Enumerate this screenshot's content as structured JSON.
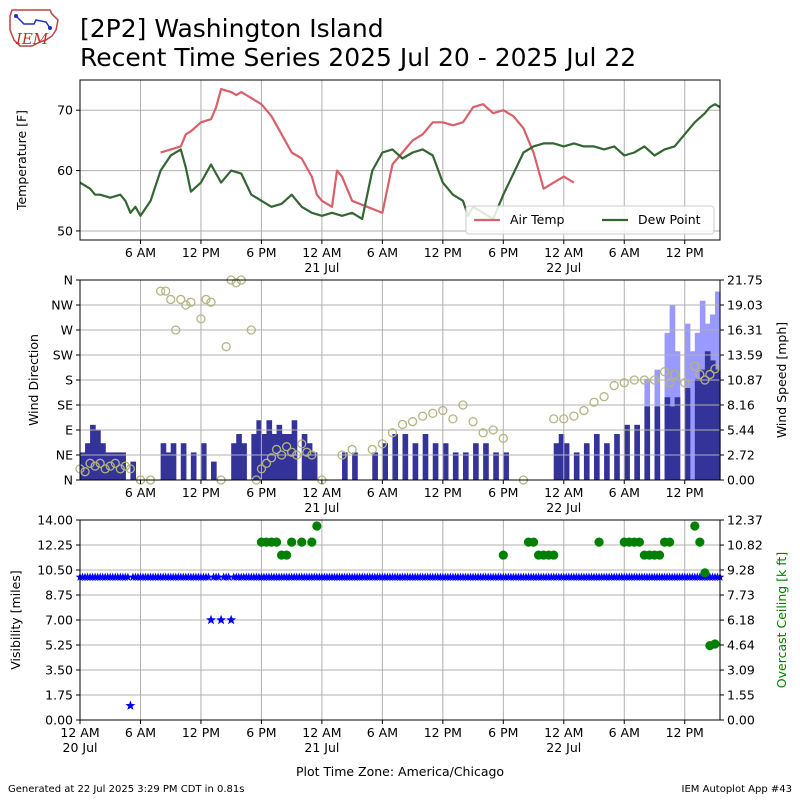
{
  "title_line1": "[2P2] Washington Island",
  "title_line2": "Recent Time Series 2025 Jul 20 - 2025 Jul 22",
  "footer_left": "Generated at 22 Jul 2025 3:29 PM CDT in 0.81s",
  "footer_right": "IEM Autoplot App #43",
  "logo_text": "IEM",
  "x_axis_title": "Plot Time Zone: America/Chicago",
  "colors": {
    "air_temp": "#d9606a",
    "dew_point": "#336633",
    "wind_speed": "#333399",
    "wind_gust": "#9999ff",
    "wind_dir": "#b5b57f",
    "visibility": "#0000ff",
    "ceiling": "#008000",
    "grid": "#b0b0b0"
  },
  "chart_data": [
    {
      "type": "line",
      "name": "temperature",
      "ylabel": "Temperature [F]",
      "ylim": [
        48.5,
        75
      ],
      "yticks": [
        50,
        60,
        70
      ],
      "xlim": [
        0,
        63.5
      ],
      "xticks": [
        6,
        12,
        18,
        24,
        30,
        36,
        42,
        48,
        54,
        60
      ],
      "xtick_labels": [
        "6 AM",
        "12 PM",
        "6 PM",
        "12 AM",
        "6 AM",
        "12 PM",
        "6 PM",
        "12 AM",
        "6 AM",
        "12 PM"
      ],
      "xtick_sublabels": {
        "24": "21 Jul",
        "48": "22 Jul"
      },
      "grid": true,
      "legend_position": "lower-right",
      "series": [
        {
          "name": "Air Temp",
          "x": [
            8,
            9,
            10,
            10.5,
            11,
            12,
            13,
            13.5,
            14,
            15,
            15.5,
            16,
            17,
            18,
            19,
            20,
            21,
            22,
            23,
            23.5,
            24,
            25,
            25.5,
            26,
            27,
            30,
            31,
            32,
            33,
            34,
            35,
            36,
            37,
            38,
            39,
            40,
            41,
            42,
            43,
            44,
            44.5,
            45,
            45.5,
            46,
            47,
            48,
            49
          ],
          "y": [
            63,
            63.5,
            64,
            66,
            66.5,
            68,
            68.5,
            70.5,
            73.5,
            73,
            72.5,
            73,
            72,
            71,
            69,
            66,
            63,
            62,
            59,
            56,
            55,
            54,
            60,
            59,
            55,
            53,
            61,
            63,
            65,
            66,
            68,
            68,
            67.5,
            68,
            70.5,
            71,
            69.5,
            70,
            69,
            67,
            65,
            63,
            60,
            57,
            58,
            59,
            58
          ]
        },
        {
          "name": "Dew Point",
          "x": [
            0,
            1,
            1.5,
            2,
            3,
            4,
            4.5,
            5,
            5.5,
            6,
            7,
            8,
            9,
            10,
            10.5,
            11,
            12,
            13,
            14,
            15,
            16,
            17,
            17.5,
            18,
            19,
            20,
            21,
            22,
            23,
            24,
            25,
            26,
            27,
            28,
            29,
            30,
            31,
            32,
            33,
            34,
            35,
            36,
            37,
            38,
            38.5,
            39,
            40,
            41,
            42,
            43,
            44,
            45,
            46,
            47,
            48,
            49,
            50,
            51,
            52,
            53,
            54,
            55,
            56,
            57,
            58,
            59,
            60,
            61,
            62,
            62.5,
            63,
            63.5
          ],
          "y": [
            58,
            57,
            56,
            56,
            55.5,
            56,
            55,
            53,
            54,
            52.5,
            55,
            60,
            62.5,
            63.5,
            60.5,
            56.5,
            58,
            61,
            58,
            60,
            59.5,
            56,
            55.5,
            55,
            54,
            54.5,
            56,
            54,
            53,
            52.5,
            53,
            52.5,
            53,
            52,
            60,
            63,
            63.5,
            62,
            63,
            63.5,
            62.5,
            58,
            56,
            55,
            52.5,
            54,
            53,
            52,
            56,
            59.5,
            63,
            64,
            64.5,
            64.5,
            64,
            64.5,
            64,
            64,
            63.5,
            64,
            62.5,
            63,
            64,
            62.5,
            63.5,
            64,
            66,
            68,
            69.5,
            70.5,
            71,
            70.5
          ]
        }
      ]
    },
    {
      "type": "bar",
      "name": "wind",
      "ylabel": "Wind Direction",
      "ylabel_right": "Wind Speed [mph]",
      "ylim": [
        0,
        360
      ],
      "yticks": [
        0,
        45,
        90,
        135,
        180,
        225,
        270,
        315,
        360
      ],
      "ytick_labels": [
        "N",
        "NE",
        "E",
        "SE",
        "S",
        "SW",
        "W",
        "NW",
        "N"
      ],
      "ylim_right": [
        0,
        21.75
      ],
      "yticks_right": [
        0.0,
        2.72,
        5.44,
        8.16,
        10.87,
        13.59,
        16.31,
        19.03,
        21.75
      ],
      "xlim": [
        0,
        63.5
      ],
      "grid": true,
      "wind_speed": {
        "name": "Wind Speed",
        "values": [
          [
            0,
            3
          ],
          [
            0.5,
            4
          ],
          [
            1,
            6
          ],
          [
            1.5,
            5.5
          ],
          [
            2,
            4
          ],
          [
            2.5,
            3
          ],
          [
            3,
            3
          ],
          [
            3.5,
            3
          ],
          [
            4,
            3
          ],
          [
            5,
            2
          ],
          [
            6,
            0
          ],
          [
            8,
            4
          ],
          [
            8.5,
            3
          ],
          [
            9,
            4
          ],
          [
            10,
            4
          ],
          [
            11,
            3
          ],
          [
            12,
            4
          ],
          [
            13,
            2
          ],
          [
            14,
            0
          ],
          [
            15,
            4
          ],
          [
            15.5,
            5
          ],
          [
            16,
            4
          ],
          [
            17,
            5
          ],
          [
            17.5,
            6.5
          ],
          [
            18,
            5
          ],
          [
            18.5,
            6.5
          ],
          [
            19,
            5
          ],
          [
            19.5,
            6
          ],
          [
            20,
            5
          ],
          [
            20.5,
            5
          ],
          [
            21,
            6.5
          ],
          [
            22,
            5
          ],
          [
            22.5,
            4
          ],
          [
            23,
            3
          ],
          [
            24,
            0
          ],
          [
            26,
            3
          ],
          [
            26.5,
            0
          ],
          [
            27,
            3
          ],
          [
            29,
            3
          ],
          [
            30,
            4
          ],
          [
            31,
            5
          ],
          [
            32,
            5
          ],
          [
            33,
            4
          ],
          [
            34,
            5
          ],
          [
            35,
            4
          ],
          [
            36,
            4
          ],
          [
            37,
            3
          ],
          [
            38,
            3
          ],
          [
            39,
            4
          ],
          [
            40,
            4
          ],
          [
            41,
            3
          ],
          [
            42,
            3
          ],
          [
            44,
            0
          ],
          [
            47,
            4
          ],
          [
            47.5,
            5
          ],
          [
            48,
            4
          ],
          [
            49,
            3
          ],
          [
            50,
            4
          ],
          [
            51,
            5
          ],
          [
            52,
            4
          ],
          [
            53,
            5
          ],
          [
            54,
            6
          ],
          [
            55,
            6
          ],
          [
            56,
            8
          ],
          [
            57,
            8
          ],
          [
            58,
            9
          ],
          [
            58.5,
            8
          ],
          [
            59,
            9
          ],
          [
            60,
            10
          ],
          [
            61,
            11
          ],
          [
            61.5,
            12
          ],
          [
            62,
            14
          ],
          [
            62.5,
            13
          ],
          [
            63,
            12
          ]
        ]
      },
      "wind_gust": {
        "name": "Wind Gust",
        "values": [
          [
            56,
            11
          ],
          [
            57,
            12
          ],
          [
            58,
            16
          ],
          [
            58.5,
            19
          ],
          [
            59,
            14
          ],
          [
            60,
            17
          ],
          [
            60.5,
            14
          ],
          [
            61,
            16
          ],
          [
            61.5,
            19.5
          ],
          [
            62,
            17
          ],
          [
            62.5,
            18
          ],
          [
            63,
            20.5
          ]
        ]
      },
      "wind_direction": {
        "name": "Wind Direction",
        "x": [
          0,
          0.5,
          1,
          1.5,
          2,
          2.5,
          3,
          3.5,
          4,
          4.5,
          5,
          6,
          7,
          8,
          8.5,
          9,
          9.5,
          10,
          10.5,
          11,
          12,
          12.5,
          13,
          14,
          14.5,
          15,
          15.5,
          16,
          17,
          17.5,
          18,
          18.5,
          19,
          19.5,
          20,
          20.5,
          21,
          21.5,
          22,
          22.5,
          23,
          24,
          26,
          27,
          29,
          30,
          31,
          32,
          33,
          34,
          35,
          36,
          37,
          38,
          39,
          40,
          41,
          42,
          44,
          47,
          48,
          49,
          50,
          51,
          52,
          53,
          54,
          55,
          56,
          57,
          58,
          58.5,
          59,
          60,
          61,
          61.5,
          62,
          62.5,
          63
        ],
        "y": [
          20,
          15,
          30,
          25,
          30,
          20,
          25,
          30,
          20,
          25,
          20,
          0,
          0,
          340,
          340,
          325,
          270,
          325,
          315,
          320,
          290,
          325,
          320,
          0,
          240,
          360,
          355,
          360,
          270,
          0,
          20,
          30,
          40,
          55,
          45,
          60,
          50,
          45,
          65,
          50,
          45,
          0,
          45,
          55,
          55,
          65,
          85,
          100,
          105,
          115,
          120,
          125,
          110,
          135,
          105,
          85,
          90,
          75,
          0,
          110,
          110,
          115,
          125,
          140,
          150,
          170,
          175,
          180,
          180,
          180,
          195,
          175,
          190,
          175,
          205,
          190,
          180,
          190,
          200
        ]
      }
    },
    {
      "type": "scatter",
      "name": "visibility_ceiling",
      "ylabel": "Visibility [miles]",
      "ylabel_right": "Overcast Ceiling [k ft]",
      "ylim": [
        0,
        14
      ],
      "yticks": [
        0.0,
        1.75,
        3.5,
        5.25,
        7.0,
        8.75,
        10.5,
        12.25,
        14.0
      ],
      "ylim_right": [
        0,
        12.37
      ],
      "yticks_right": [
        0.0,
        1.55,
        3.09,
        4.64,
        6.18,
        7.73,
        9.28,
        10.82,
        12.37
      ],
      "xlim": [
        0,
        63.5
      ],
      "xticks": [
        0,
        6,
        12,
        18,
        24,
        30,
        36,
        42,
        48,
        54,
        60
      ],
      "xtick_labels": [
        "12 AM",
        "6 AM",
        "12 PM",
        "6 PM",
        "12 AM",
        "6 AM",
        "12 PM",
        "6 PM",
        "12 AM",
        "6 AM",
        "12 PM"
      ],
      "xtick_sublabels": {
        "0": "20 Jul",
        "24": "21 Jul",
        "48": "22 Jul"
      },
      "grid": true,
      "visibility": {
        "name": "Visibility",
        "constant_value": 10,
        "constant_range": [
          0,
          63.5
        ],
        "exceptions": [
          [
            5,
            1
          ],
          [
            13,
            7
          ],
          [
            14,
            7
          ],
          [
            15,
            7
          ]
        ]
      },
      "ceiling": {
        "name": "Overcast Ceiling",
        "x": [
          18,
          18.5,
          19,
          19.5,
          20,
          20.5,
          21,
          22,
          23,
          23.5,
          42,
          44.5,
          45,
          45.5,
          46,
          46.5,
          47,
          51.5,
          54,
          54.5,
          55,
          55.5,
          56,
          56.5,
          57,
          57.5,
          58,
          58.5,
          61,
          61.5,
          62,
          62.5,
          63
        ],
        "y": [
          11,
          11,
          11,
          11,
          10.2,
          10.2,
          11,
          11,
          11,
          12,
          10.2,
          11,
          11,
          10.2,
          10.2,
          10.2,
          10.2,
          11,
          11,
          11,
          11,
          11,
          10.2,
          10.2,
          10.2,
          10.2,
          11,
          11,
          12,
          11,
          9.1,
          4.6,
          4.7
        ]
      }
    }
  ]
}
